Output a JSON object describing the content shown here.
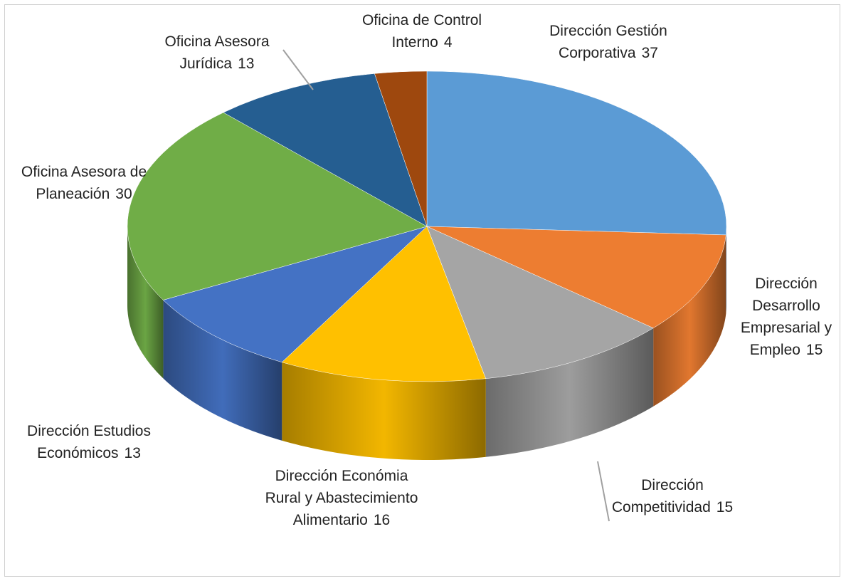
{
  "chart_data": {
    "type": "pie",
    "categories": [
      "Dirección Gestión Corporativa",
      "Dirección Desarrollo Empresarial y Empleo",
      "Dirección Competitividad",
      "Dirección Económia Rural y Abastecimiento Alimentario",
      "Dirección Estudios Económicos",
      "Oficina Asesora de Planeación",
      "Oficina Asesora Jurídica",
      "Oficina de Control Interno"
    ],
    "values": [
      37,
      15,
      15,
      16,
      13,
      30,
      13,
      4
    ],
    "colors": [
      "#5b9bd5",
      "#ed7d31",
      "#a5a5a5",
      "#ffc000",
      "#4472c4",
      "#70ad47",
      "#255e91",
      "#9e480e"
    ]
  }
}
